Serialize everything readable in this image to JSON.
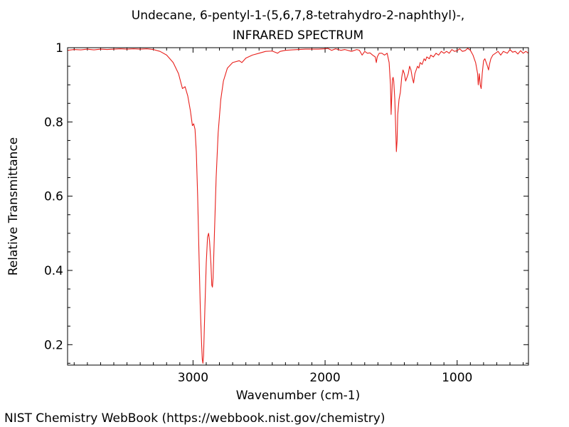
{
  "chart_data": {
    "type": "line",
    "title": "Undecane, 6-pentyl-1-(5,6,7,8-tetrahydro-2-naphthyl)-,",
    "subtitle": "INFRARED SPECTRUM",
    "xlabel": "Wavenumber (cm-1)",
    "ylabel": "Relative Transmittance",
    "xlim": [
      3950,
      460
    ],
    "ylim": [
      0.145,
      1.0
    ],
    "x_reversed": true,
    "x_ticks": [
      3000,
      2000,
      1000
    ],
    "y_ticks": [
      0.2,
      0.4,
      0.6,
      0.8,
      1
    ],
    "x_tick_labels": [
      "3000",
      "2000",
      "1000"
    ],
    "y_tick_labels": [
      "0.2",
      "0.4",
      "0.6",
      "0.8",
      "1"
    ],
    "grid": false,
    "legend": "none",
    "series": [
      {
        "color": "#e8201c",
        "points": [
          [
            3950,
            0.993
          ],
          [
            3900,
            0.995
          ],
          [
            3850,
            0.994
          ],
          [
            3800,
            0.996
          ],
          [
            3750,
            0.994
          ],
          [
            3700,
            0.996
          ],
          [
            3650,
            0.995
          ],
          [
            3600,
            0.996
          ],
          [
            3550,
            0.997
          ],
          [
            3500,
            0.996
          ],
          [
            3450,
            0.997
          ],
          [
            3400,
            0.996
          ],
          [
            3350,
            0.997
          ],
          [
            3300,
            0.995
          ],
          [
            3250,
            0.99
          ],
          [
            3200,
            0.98
          ],
          [
            3150,
            0.96
          ],
          [
            3110,
            0.93
          ],
          [
            3080,
            0.89
          ],
          [
            3060,
            0.895
          ],
          [
            3040,
            0.87
          ],
          [
            3020,
            0.83
          ],
          [
            3005,
            0.79
          ],
          [
            2995,
            0.795
          ],
          [
            2985,
            0.78
          ],
          [
            2975,
            0.72
          ],
          [
            2965,
            0.6
          ],
          [
            2955,
            0.45
          ],
          [
            2945,
            0.3
          ],
          [
            2935,
            0.2
          ],
          [
            2930,
            0.16
          ],
          [
            2925,
            0.15
          ],
          [
            2920,
            0.17
          ],
          [
            2910,
            0.3
          ],
          [
            2900,
            0.42
          ],
          [
            2890,
            0.49
          ],
          [
            2882,
            0.5
          ],
          [
            2875,
            0.48
          ],
          [
            2865,
            0.42
          ],
          [
            2858,
            0.36
          ],
          [
            2853,
            0.355
          ],
          [
            2848,
            0.38
          ],
          [
            2838,
            0.5
          ],
          [
            2825,
            0.65
          ],
          [
            2810,
            0.77
          ],
          [
            2790,
            0.86
          ],
          [
            2770,
            0.91
          ],
          [
            2740,
            0.945
          ],
          [
            2700,
            0.96
          ],
          [
            2650,
            0.965
          ],
          [
            2630,
            0.96
          ],
          [
            2600,
            0.972
          ],
          [
            2550,
            0.98
          ],
          [
            2500,
            0.985
          ],
          [
            2450,
            0.99
          ],
          [
            2400,
            0.991
          ],
          [
            2360,
            0.985
          ],
          [
            2340,
            0.99
          ],
          [
            2300,
            0.993
          ],
          [
            2250,
            0.994
          ],
          [
            2200,
            0.995
          ],
          [
            2150,
            0.996
          ],
          [
            2100,
            0.996
          ],
          [
            2050,
            0.996
          ],
          [
            2000,
            0.997
          ],
          [
            1980,
            0.998
          ],
          [
            1950,
            0.993
          ],
          [
            1920,
            0.997
          ],
          [
            1880,
            0.993
          ],
          [
            1850,
            0.995
          ],
          [
            1800,
            0.99
          ],
          [
            1760,
            0.995
          ],
          [
            1740,
            0.993
          ],
          [
            1720,
            0.98
          ],
          [
            1700,
            0.99
          ],
          [
            1680,
            0.985
          ],
          [
            1660,
            0.986
          ],
          [
            1640,
            0.98
          ],
          [
            1620,
            0.975
          ],
          [
            1612,
            0.96
          ],
          [
            1605,
            0.975
          ],
          [
            1590,
            0.985
          ],
          [
            1570,
            0.985
          ],
          [
            1550,
            0.98
          ],
          [
            1530,
            0.985
          ],
          [
            1515,
            0.96
          ],
          [
            1505,
            0.9
          ],
          [
            1500,
            0.82
          ],
          [
            1495,
            0.87
          ],
          [
            1490,
            0.915
          ],
          [
            1485,
            0.92
          ],
          [
            1480,
            0.91
          ],
          [
            1472,
            0.86
          ],
          [
            1465,
            0.78
          ],
          [
            1460,
            0.72
          ],
          [
            1455,
            0.75
          ],
          [
            1450,
            0.82
          ],
          [
            1440,
            0.86
          ],
          [
            1430,
            0.88
          ],
          [
            1420,
            0.92
          ],
          [
            1410,
            0.94
          ],
          [
            1400,
            0.93
          ],
          [
            1390,
            0.91
          ],
          [
            1380,
            0.92
          ],
          [
            1370,
            0.93
          ],
          [
            1360,
            0.95
          ],
          [
            1350,
            0.94
          ],
          [
            1340,
            0.92
          ],
          [
            1330,
            0.905
          ],
          [
            1320,
            0.93
          ],
          [
            1300,
            0.95
          ],
          [
            1290,
            0.945
          ],
          [
            1280,
            0.96
          ],
          [
            1265,
            0.955
          ],
          [
            1250,
            0.97
          ],
          [
            1240,
            0.965
          ],
          [
            1230,
            0.975
          ],
          [
            1210,
            0.97
          ],
          [
            1200,
            0.98
          ],
          [
            1180,
            0.975
          ],
          [
            1160,
            0.985
          ],
          [
            1140,
            0.98
          ],
          [
            1120,
            0.99
          ],
          [
            1100,
            0.985
          ],
          [
            1080,
            0.99
          ],
          [
            1060,
            0.985
          ],
          [
            1040,
            0.995
          ],
          [
            1020,
            0.99
          ],
          [
            1000,
            0.992
          ],
          [
            980,
            0.997
          ],
          [
            960,
            0.99
          ],
          [
            940,
            0.992
          ],
          [
            920,
            0.998
          ],
          [
            900,
            0.993
          ],
          [
            880,
            0.98
          ],
          [
            860,
            0.96
          ],
          [
            845,
            0.93
          ],
          [
            840,
            0.9
          ],
          [
            832,
            0.93
          ],
          [
            825,
            0.9
          ],
          [
            818,
            0.89
          ],
          [
            810,
            0.93
          ],
          [
            800,
            0.965
          ],
          [
            790,
            0.97
          ],
          [
            780,
            0.96
          ],
          [
            770,
            0.95
          ],
          [
            762,
            0.94
          ],
          [
            755,
            0.955
          ],
          [
            745,
            0.97
          ],
          [
            730,
            0.98
          ],
          [
            710,
            0.985
          ],
          [
            690,
            0.99
          ],
          [
            670,
            0.98
          ],
          [
            650,
            0.99
          ],
          [
            620,
            0.985
          ],
          [
            600,
            0.995
          ],
          [
            580,
            0.988
          ],
          [
            560,
            0.99
          ],
          [
            540,
            0.983
          ],
          [
            520,
            0.992
          ],
          [
            500,
            0.985
          ],
          [
            480,
            0.99
          ],
          [
            460,
            0.985
          ]
        ]
      }
    ]
  },
  "footer": {
    "credit": "NIST Chemistry WebBook (https://webbook.nist.gov/chemistry)"
  }
}
